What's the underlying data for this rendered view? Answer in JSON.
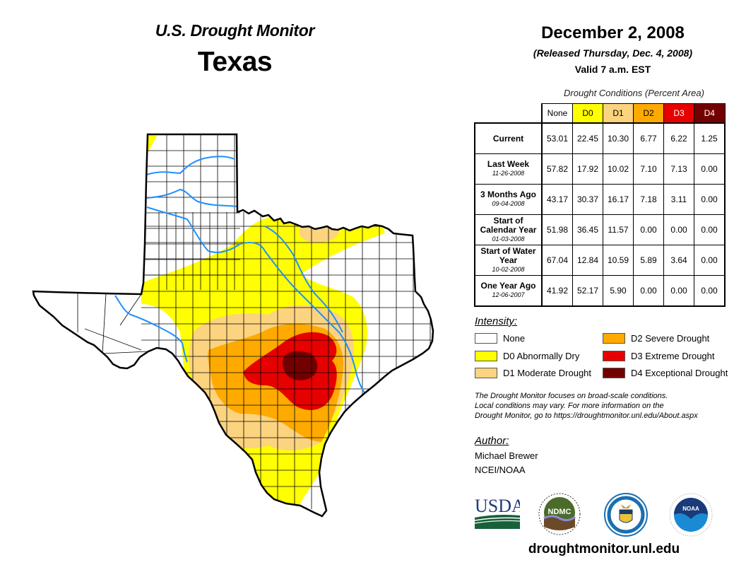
{
  "header": {
    "title": "U.S. Drought Monitor",
    "state": "Texas",
    "date": "December 2, 2008",
    "released": "(Released Thursday, Dec. 4, 2008)",
    "valid": "Valid 7 a.m. EST"
  },
  "colors": {
    "None": "#ffffff",
    "D0": "#ffff00",
    "D1": "#fcd37f",
    "D2": "#ffaa00",
    "D3": "#e60000",
    "D4": "#730000",
    "river": "#1e90ff",
    "border": "#000000"
  },
  "table": {
    "caption": "Drought Conditions (Percent Area)",
    "columns": [
      "None",
      "D0",
      "D1",
      "D2",
      "D3",
      "D4"
    ],
    "rows": [
      {
        "label": "Current",
        "date": "",
        "values": [
          "53.01",
          "22.45",
          "10.30",
          "6.77",
          "6.22",
          "1.25"
        ]
      },
      {
        "label": "Last Week",
        "date": "11-26-2008",
        "values": [
          "57.82",
          "17.92",
          "10.02",
          "7.10",
          "7.13",
          "0.00"
        ]
      },
      {
        "label": "3 Months Ago",
        "date": "09-04-2008",
        "values": [
          "43.17",
          "30.37",
          "16.17",
          "7.18",
          "3.11",
          "0.00"
        ]
      },
      {
        "label": "Start of Calendar Year",
        "date": "01-03-2008",
        "values": [
          "51.98",
          "36.45",
          "11.57",
          "0.00",
          "0.00",
          "0.00"
        ]
      },
      {
        "label": "Start of Water Year",
        "date": "10-02-2008",
        "values": [
          "67.04",
          "12.84",
          "10.59",
          "5.89",
          "3.64",
          "0.00"
        ]
      },
      {
        "label": "One Year Ago",
        "date": "12-06-2007",
        "values": [
          "41.92",
          "52.17",
          "5.90",
          "0.00",
          "0.00",
          "0.00"
        ]
      }
    ]
  },
  "legend": {
    "title": "Intensity:",
    "items": [
      {
        "label": "None",
        "level": "None"
      },
      {
        "label": "D0 Abnormally Dry",
        "level": "D0"
      },
      {
        "label": "D1 Moderate Drought",
        "level": "D1"
      },
      {
        "label": "D2 Severe Drought",
        "level": "D2"
      },
      {
        "label": "D3 Extreme Drought",
        "level": "D3"
      },
      {
        "label": "D4 Exceptional Drought",
        "level": "D4"
      }
    ]
  },
  "note": {
    "line1": "The Drought Monitor focuses on broad-scale conditions.",
    "line2": "Local conditions may vary. For more information on the",
    "line3": "Drought Monitor, go to https://droughtmonitor.unl.edu/About.aspx"
  },
  "author": {
    "title": "Author:",
    "name": "Michael Brewer",
    "org": "NCEI/NOAA"
  },
  "logos": {
    "usda": "USDA",
    "ndmc": "NDMC",
    "noaa": "NOAA"
  },
  "footer_url": "droughtmonitor.unl.edu"
}
